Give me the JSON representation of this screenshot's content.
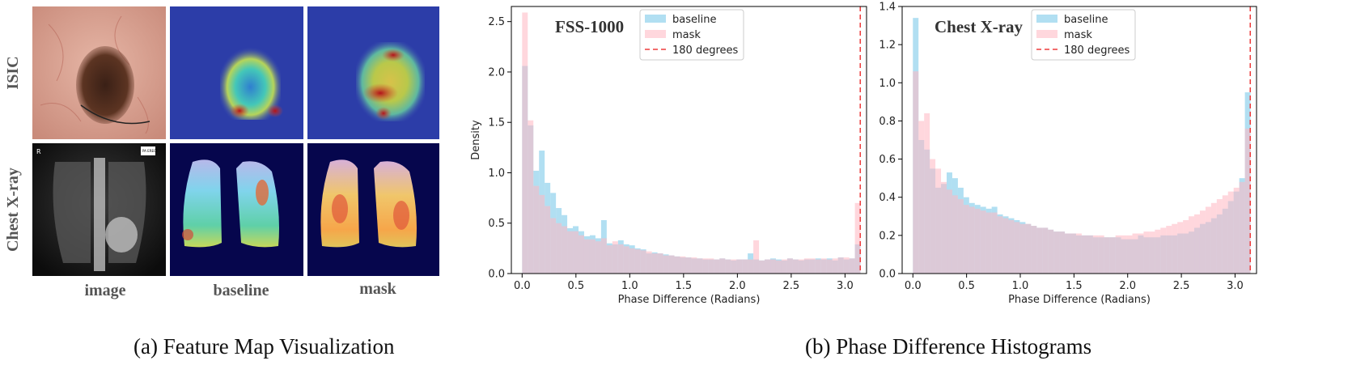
{
  "left_panel": {
    "row_labels": [
      "ISIC",
      "Chest X-ray"
    ],
    "column_labels": [
      "image",
      "baseline",
      "mask"
    ],
    "caption": "(a) Feature Map Visualization",
    "xray_marker": "R",
    "xray_tag": "PA ERECT",
    "colors": {
      "jet_bg": "#2c3da8",
      "xray_bg": "#06064d",
      "skin": "#d8a292",
      "lesion": "#4a2a1c"
    }
  },
  "right_panel": {
    "caption": "(b) Phase Difference Histograms"
  },
  "chart_data": [
    {
      "type": "histogram",
      "title": "FSS-1000",
      "xlabel": "Phase Difference (Radians)",
      "ylabel": "Density",
      "xlim": [
        -0.1,
        3.2
      ],
      "ylim": [
        0,
        2.65
      ],
      "xticks": [
        "0.0",
        "0.5",
        "1.0",
        "1.5",
        "2.0",
        "2.5",
        "3.0"
      ],
      "yticks": [
        "0.0",
        "0.5",
        "1.0",
        "1.5",
        "2.0",
        "2.5"
      ],
      "bins": {
        "start": 0,
        "width": 0.0524
      },
      "legend": {
        "position": "top-center",
        "entries": [
          "baseline",
          "mask",
          "180 degrees"
        ]
      },
      "vline": {
        "x": 3.1416,
        "label": "180 degrees",
        "color": "#ee3b3b"
      },
      "series": [
        {
          "name": "baseline",
          "color": "#87ceeb",
          "values": [
            2.06,
            1.47,
            1.02,
            1.22,
            0.9,
            0.8,
            0.65,
            0.58,
            0.45,
            0.47,
            0.42,
            0.37,
            0.38,
            0.35,
            0.53,
            0.3,
            0.29,
            0.33,
            0.29,
            0.28,
            0.25,
            0.24,
            0.2,
            0.21,
            0.2,
            0.19,
            0.18,
            0.17,
            0.16,
            0.16,
            0.15,
            0.15,
            0.14,
            0.14,
            0.14,
            0.15,
            0.14,
            0.13,
            0.14,
            0.14,
            0.2,
            0.14,
            0.13,
            0.14,
            0.15,
            0.14,
            0.13,
            0.15,
            0.14,
            0.13,
            0.14,
            0.14,
            0.15,
            0.14,
            0.15,
            0.13,
            0.16,
            0.14,
            0.15,
            0.29
          ]
        },
        {
          "name": "mask",
          "color": "#ffb6c1",
          "values": [
            2.59,
            1.52,
            0.87,
            0.78,
            0.67,
            0.55,
            0.5,
            0.47,
            0.42,
            0.42,
            0.38,
            0.34,
            0.34,
            0.32,
            0.35,
            0.28,
            0.32,
            0.29,
            0.27,
            0.25,
            0.24,
            0.23,
            0.22,
            0.2,
            0.2,
            0.18,
            0.18,
            0.17,
            0.17,
            0.16,
            0.16,
            0.15,
            0.15,
            0.15,
            0.14,
            0.15,
            0.14,
            0.14,
            0.14,
            0.14,
            0.14,
            0.33,
            0.13,
            0.14,
            0.14,
            0.13,
            0.14,
            0.15,
            0.14,
            0.14,
            0.15,
            0.15,
            0.14,
            0.15,
            0.14,
            0.15,
            0.16,
            0.16,
            0.15,
            0.7
          ]
        }
      ]
    },
    {
      "type": "histogram",
      "title": "Chest X-ray",
      "xlabel": "Phase Difference (Radians)",
      "ylabel": "",
      "xlim": [
        -0.1,
        3.2
      ],
      "ylim": [
        0,
        1.4
      ],
      "xticks": [
        "0.0",
        "0.5",
        "1.0",
        "1.5",
        "2.0",
        "2.5",
        "3.0"
      ],
      "yticks": [
        "0.0",
        "0.2",
        "0.4",
        "0.6",
        "0.8",
        "1.0",
        "1.2",
        "1.4"
      ],
      "bins": {
        "start": 0,
        "width": 0.0524
      },
      "legend": {
        "position": "top-center",
        "entries": [
          "baseline",
          "mask",
          "180 degrees"
        ]
      },
      "vline": {
        "x": 3.1416,
        "label": "180 degrees",
        "color": "#ee3b3b"
      },
      "series": [
        {
          "name": "baseline",
          "color": "#87ceeb",
          "values": [
            1.34,
            0.7,
            0.65,
            0.55,
            0.45,
            0.47,
            0.53,
            0.5,
            0.45,
            0.4,
            0.37,
            0.36,
            0.35,
            0.34,
            0.35,
            0.31,
            0.3,
            0.29,
            0.28,
            0.27,
            0.26,
            0.25,
            0.24,
            0.24,
            0.23,
            0.22,
            0.22,
            0.21,
            0.21,
            0.2,
            0.2,
            0.2,
            0.19,
            0.19,
            0.19,
            0.19,
            0.19,
            0.18,
            0.18,
            0.18,
            0.2,
            0.19,
            0.19,
            0.19,
            0.2,
            0.2,
            0.2,
            0.21,
            0.21,
            0.22,
            0.24,
            0.26,
            0.27,
            0.29,
            0.31,
            0.34,
            0.38,
            0.43,
            0.5,
            0.95
          ]
        },
        {
          "name": "mask",
          "color": "#ffb6c1",
          "values": [
            1.06,
            0.8,
            0.84,
            0.6,
            0.55,
            0.48,
            0.44,
            0.41,
            0.39,
            0.36,
            0.35,
            0.34,
            0.33,
            0.32,
            0.32,
            0.3,
            0.29,
            0.28,
            0.27,
            0.26,
            0.26,
            0.25,
            0.24,
            0.24,
            0.23,
            0.22,
            0.22,
            0.21,
            0.21,
            0.21,
            0.2,
            0.2,
            0.2,
            0.2,
            0.19,
            0.19,
            0.2,
            0.2,
            0.2,
            0.21,
            0.21,
            0.22,
            0.22,
            0.23,
            0.24,
            0.25,
            0.26,
            0.27,
            0.28,
            0.3,
            0.31,
            0.33,
            0.35,
            0.37,
            0.39,
            0.41,
            0.43,
            0.45,
            0.48,
            0.76
          ]
        }
      ]
    }
  ]
}
